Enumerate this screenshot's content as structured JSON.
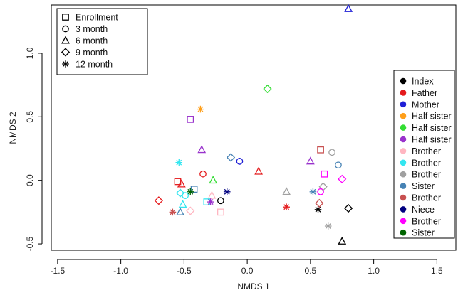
{
  "chart_data": {
    "type": "scatter",
    "title": "",
    "xlabel": "NMDS 1",
    "ylabel": "NMDS 2",
    "xlim": [
      -1.55,
      1.65
    ],
    "ylim": [
      -0.55,
      1.38
    ],
    "xticks": [
      "-1.5",
      "-1.0",
      "-0.5",
      "0.0",
      "0.5",
      "1.0",
      "1.5"
    ],
    "yticks": [
      "-0.5",
      "0.0",
      "0.5",
      "1.0"
    ],
    "grid": false,
    "shape_legend": {
      "placement": "top-left",
      "entries": [
        {
          "label": "Enrollment",
          "shape": "square"
        },
        {
          "label": "3 month",
          "shape": "circle"
        },
        {
          "label": "6 month",
          "shape": "triangle"
        },
        {
          "label": "9 month",
          "shape": "diamond"
        },
        {
          "label": "12 month",
          "shape": "asterisk"
        }
      ]
    },
    "color_legend": {
      "placement": "right",
      "entries": [
        {
          "label": "Index",
          "color": "#000000"
        },
        {
          "label": "Father",
          "color": "#e41a1c"
        },
        {
          "label": "Mother",
          "color": "#1f1fd6"
        },
        {
          "label": "Half sister",
          "color": "#ff9f1a"
        },
        {
          "label": "Half sister",
          "color": "#33dd33"
        },
        {
          "label": "Half sister",
          "color": "#9932cc"
        },
        {
          "label": "Brother",
          "color": "#ffb6c1"
        },
        {
          "label": "Brother",
          "color": "#33e6f0"
        },
        {
          "label": "Brother",
          "color": "#a0a0a0"
        },
        {
          "label": "Sister",
          "color": "#4682b4"
        },
        {
          "label": "Brother",
          "color": "#c85050"
        },
        {
          "label": "Niece",
          "color": "#000080"
        },
        {
          "label": "Brother",
          "color": "#ff00ff"
        },
        {
          "label": "Sister",
          "color": "#006400"
        }
      ]
    },
    "points": [
      {
        "x": 0.8,
        "y": 1.35,
        "shape": "triangle",
        "color": "#1f1fd6"
      },
      {
        "x": 0.16,
        "y": 0.72,
        "shape": "diamond",
        "color": "#33dd33"
      },
      {
        "x": -0.37,
        "y": 0.56,
        "shape": "asterisk",
        "color": "#ff9f1a"
      },
      {
        "x": -0.45,
        "y": 0.48,
        "shape": "square",
        "color": "#9932cc"
      },
      {
        "x": -0.36,
        "y": 0.24,
        "shape": "triangle",
        "color": "#9932cc"
      },
      {
        "x": 0.58,
        "y": 0.24,
        "shape": "square",
        "color": "#c85050"
      },
      {
        "x": 0.67,
        "y": 0.22,
        "shape": "circle",
        "color": "#a0a0a0"
      },
      {
        "x": -0.13,
        "y": 0.18,
        "shape": "diamond",
        "color": "#4682b4"
      },
      {
        "x": -0.06,
        "y": 0.15,
        "shape": "circle",
        "color": "#1f1fd6"
      },
      {
        "x": 0.5,
        "y": 0.15,
        "shape": "triangle",
        "color": "#9932cc"
      },
      {
        "x": 0.72,
        "y": 0.12,
        "shape": "circle",
        "color": "#4682b4"
      },
      {
        "x": -0.54,
        "y": 0.14,
        "shape": "asterisk",
        "color": "#33e6f0"
      },
      {
        "x": 0.09,
        "y": 0.07,
        "shape": "triangle",
        "color": "#e41a1c"
      },
      {
        "x": -0.35,
        "y": 0.05,
        "shape": "circle",
        "color": "#e41a1c"
      },
      {
        "x": 0.61,
        "y": 0.05,
        "shape": "square",
        "color": "#ff00ff"
      },
      {
        "x": 0.75,
        "y": 0.01,
        "shape": "diamond",
        "color": "#ff00ff"
      },
      {
        "x": -0.55,
        "y": -0.01,
        "shape": "square",
        "color": "#e41a1c"
      },
      {
        "x": -0.52,
        "y": -0.03,
        "shape": "triangle",
        "color": "#e41a1c"
      },
      {
        "x": -0.27,
        "y": 0.0,
        "shape": "triangle",
        "color": "#33dd33"
      },
      {
        "x": 0.6,
        "y": -0.05,
        "shape": "diamond",
        "color": "#a0a0a0"
      },
      {
        "x": -0.42,
        "y": -0.07,
        "shape": "square",
        "color": "#4682b4"
      },
      {
        "x": -0.45,
        "y": -0.09,
        "shape": "asterisk",
        "color": "#006400"
      },
      {
        "x": -0.16,
        "y": -0.09,
        "shape": "asterisk",
        "color": "#000080"
      },
      {
        "x": 0.31,
        "y": -0.09,
        "shape": "triangle",
        "color": "#a0a0a0"
      },
      {
        "x": 0.52,
        "y": -0.09,
        "shape": "asterisk",
        "color": "#4682b4"
      },
      {
        "x": 0.58,
        "y": -0.09,
        "shape": "circle",
        "color": "#ff00ff"
      },
      {
        "x": -0.53,
        "y": -0.1,
        "shape": "diamond",
        "color": "#33e6f0"
      },
      {
        "x": -0.49,
        "y": -0.12,
        "shape": "circle",
        "color": "#33e6f0"
      },
      {
        "x": -0.28,
        "y": -0.12,
        "shape": "triangle",
        "color": "#ffb6c1"
      },
      {
        "x": -0.7,
        "y": -0.16,
        "shape": "diamond",
        "color": "#e41a1c"
      },
      {
        "x": -0.21,
        "y": -0.16,
        "shape": "circle",
        "color": "#000000"
      },
      {
        "x": -0.32,
        "y": -0.17,
        "shape": "square",
        "color": "#33e6f0"
      },
      {
        "x": -0.29,
        "y": -0.17,
        "shape": "asterisk",
        "color": "#9932cc"
      },
      {
        "x": -0.51,
        "y": -0.19,
        "shape": "triangle",
        "color": "#33e6f0"
      },
      {
        "x": 0.57,
        "y": -0.18,
        "shape": "diamond",
        "color": "#c85050"
      },
      {
        "x": 0.31,
        "y": -0.21,
        "shape": "asterisk",
        "color": "#e41a1c"
      },
      {
        "x": 0.8,
        "y": -0.22,
        "shape": "diamond",
        "color": "#000000"
      },
      {
        "x": 0.56,
        "y": -0.23,
        "shape": "asterisk",
        "color": "#000000"
      },
      {
        "x": -0.59,
        "y": -0.25,
        "shape": "asterisk",
        "color": "#c85050"
      },
      {
        "x": -0.53,
        "y": -0.25,
        "shape": "triangle",
        "color": "#4682b4"
      },
      {
        "x": -0.45,
        "y": -0.24,
        "shape": "diamond",
        "color": "#ffb6c1"
      },
      {
        "x": -0.21,
        "y": -0.25,
        "shape": "square",
        "color": "#ffb6c1"
      },
      {
        "x": 0.64,
        "y": -0.36,
        "shape": "asterisk",
        "color": "#a0a0a0"
      },
      {
        "x": 0.75,
        "y": -0.48,
        "shape": "triangle",
        "color": "#000000"
      }
    ]
  }
}
